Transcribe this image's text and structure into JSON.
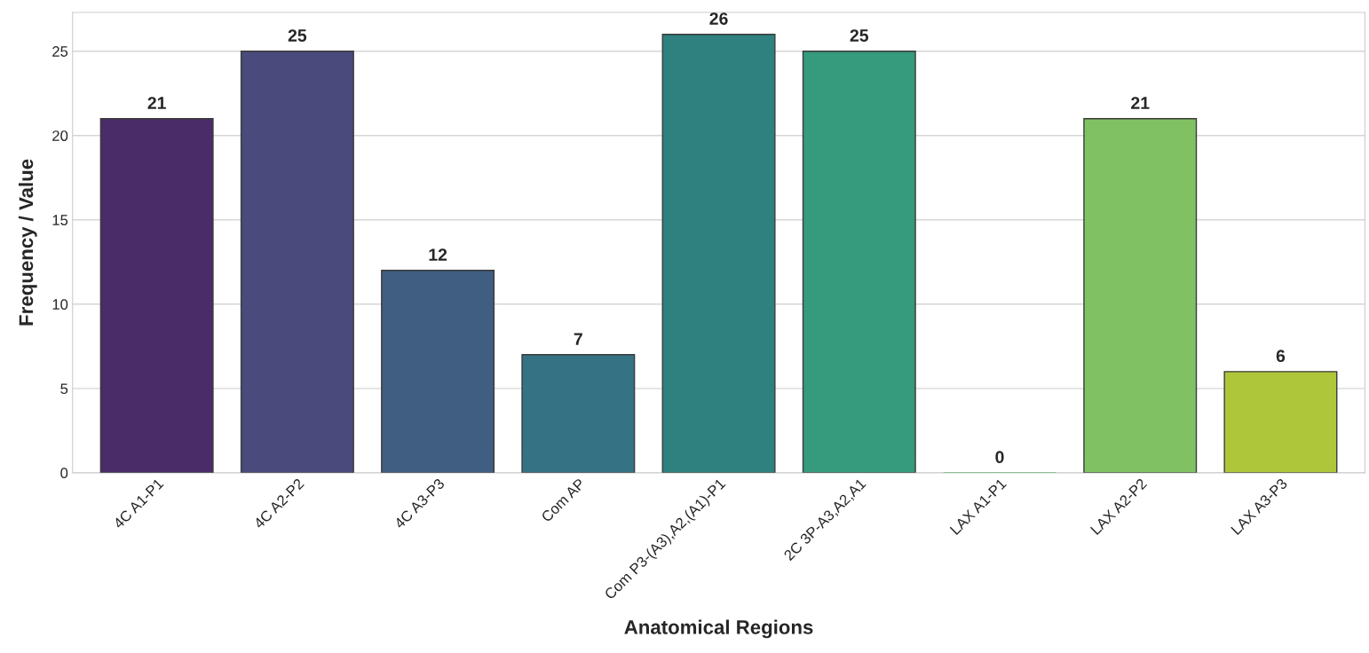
{
  "chart_data": {
    "type": "bar",
    "xlabel": "Anatomical Regions",
    "ylabel": "Frequency / Value",
    "categories": [
      "4C A1-P1",
      "4C A2-P2",
      "4C A3-P3",
      "Com AP",
      "Com P3-(A3),A2,(A1)-P1",
      "2C 3P-A3,A2,A1",
      "LAX A1-P1",
      "LAX A2-P2",
      "LAX A3-P3"
    ],
    "values": [
      21,
      25,
      12,
      7,
      26,
      25,
      0,
      21,
      6
    ],
    "colors": [
      "#4a2c68",
      "#4a4b7c",
      "#405e81",
      "#357284",
      "#2e817e",
      "#369a7c",
      "#52b46a",
      "#80c263",
      "#aec63a"
    ],
    "ylim": [
      0,
      27.3
    ],
    "yticks": [
      0,
      5,
      10,
      15,
      20,
      25
    ],
    "grid": "y",
    "data_labels": true
  }
}
